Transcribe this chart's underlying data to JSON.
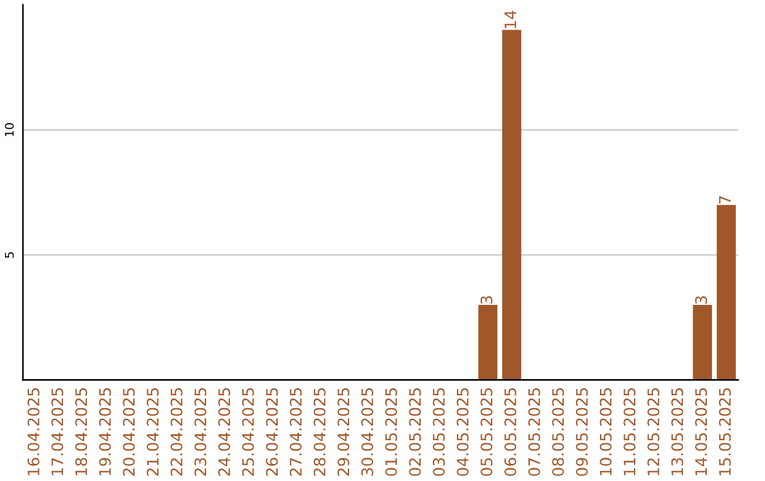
{
  "chart_data": {
    "type": "bar",
    "categories": [
      "16.04.2025",
      "17.04.2025",
      "18.04.2025",
      "19.04.2025",
      "20.04.2025",
      "21.04.2025",
      "22.04.2025",
      "23.04.2025",
      "24.04.2025",
      "25.04.2025",
      "26.04.2025",
      "27.04.2025",
      "28.04.2025",
      "29.04.2025",
      "30.04.2025",
      "01.05.2025",
      "02.05.2025",
      "03.05.2025",
      "04.05.2025",
      "05.05.2025",
      "06.05.2025",
      "07.05.2025",
      "08.05.2025",
      "09.05.2025",
      "10.05.2025",
      "11.05.2025",
      "12.05.2025",
      "13.05.2025",
      "14.05.2025",
      "15.05.2025"
    ],
    "values": [
      0,
      0,
      0,
      0,
      0,
      0,
      0,
      0,
      0,
      0,
      0,
      0,
      0,
      0,
      0,
      0,
      0,
      0,
      0,
      3,
      14,
      0,
      0,
      0,
      0,
      0,
      0,
      0,
      3,
      7
    ],
    "value_labels": [
      null,
      null,
      null,
      null,
      null,
      null,
      null,
      null,
      null,
      null,
      null,
      null,
      null,
      null,
      null,
      null,
      null,
      null,
      null,
      "3",
      "14",
      null,
      null,
      null,
      null,
      null,
      null,
      null,
      "3",
      "7"
    ],
    "color": "#a0582a",
    "ylim": [
      0,
      15
    ],
    "yticks": [
      5,
      10
    ],
    "grid": "y"
  }
}
